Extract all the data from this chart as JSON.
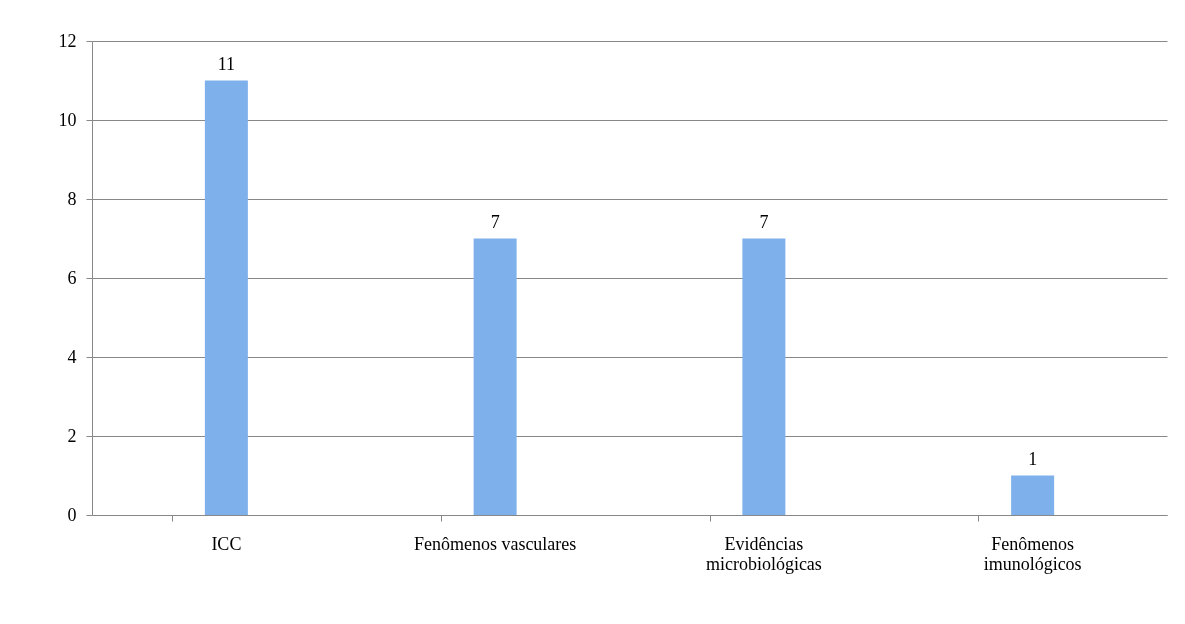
{
  "chart_data": {
    "type": "bar",
    "categories": [
      "ICC",
      "Fenômenos vasculares",
      "Evidências microbiológicas",
      "Fenômenos imunológicos"
    ],
    "values": [
      11,
      7,
      7,
      1
    ],
    "color": "#7eb0ec",
    "ylim": [
      0,
      12
    ],
    "yticks": [
      0,
      2,
      4,
      6,
      8,
      10,
      12
    ],
    "grid": "y",
    "data_labels": true
  }
}
